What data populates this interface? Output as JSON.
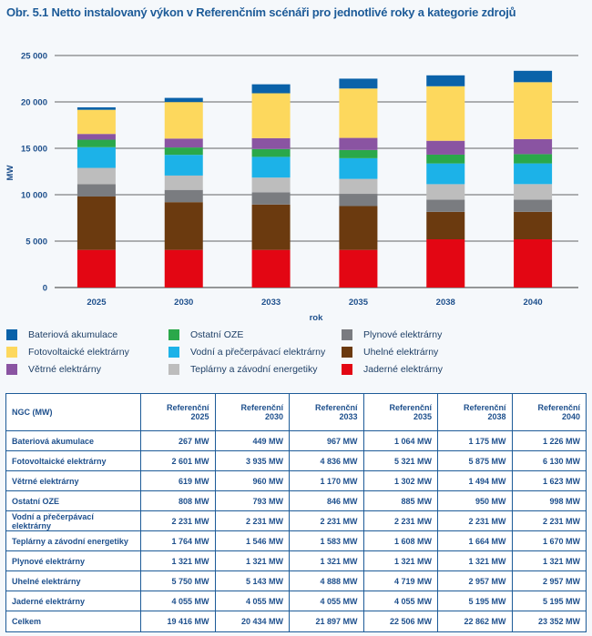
{
  "title": "Obr. 5.1 Netto instalovaný výkon v Referenčním scénáři pro jednotlivé roky a kategorie zdrojů",
  "chart_data": {
    "type": "bar",
    "stacked": true,
    "title": "Obr. 5.1 Netto instalovaný výkon v Referenčním scénáři pro jednotlivé roky a kategorie zdrojů",
    "xlabel": "rok",
    "ylabel": "MW",
    "ylim": [
      0,
      25000
    ],
    "yticks": [
      0,
      5000,
      10000,
      15000,
      20000,
      25000
    ],
    "ytick_labels": [
      "0",
      "5 000",
      "10 000",
      "15 000",
      "20 000",
      "25 000"
    ],
    "grid": true,
    "legend_placement": "bottom",
    "categories": [
      "2025",
      "2030",
      "2033",
      "2035",
      "2038",
      "2040"
    ],
    "series": [
      {
        "name": "Jaderné elektrárny",
        "color": "#e30613",
        "values": [
          4055,
          4055,
          4055,
          4055,
          5195,
          5195
        ]
      },
      {
        "name": "Uhelné elektrárny",
        "color": "#6b3a0f",
        "values": [
          5750,
          5143,
          4888,
          4719,
          2957,
          2957
        ]
      },
      {
        "name": "Plynové elektrárny",
        "color": "#7a7c80",
        "values": [
          1321,
          1321,
          1321,
          1321,
          1321,
          1321
        ]
      },
      {
        "name": "Teplárny a závodní energetiky",
        "color": "#bdbdbd",
        "values": [
          1764,
          1546,
          1583,
          1608,
          1664,
          1670
        ]
      },
      {
        "name": "Vodní a přečerpávací elektrárny",
        "color": "#1cb2e8",
        "values": [
          2231,
          2231,
          2231,
          2231,
          2231,
          2231
        ]
      },
      {
        "name": "Ostatní OZE",
        "color": "#2aa84a",
        "values": [
          808,
          793,
          846,
          885,
          950,
          998
        ]
      },
      {
        "name": "Větrné elektrárny",
        "color": "#8a54a2",
        "values": [
          619,
          960,
          1170,
          1302,
          1494,
          1623
        ]
      },
      {
        "name": "Fotovoltaické elektrárny",
        "color": "#fdd85d",
        "values": [
          2601,
          3935,
          4836,
          5321,
          5875,
          6130
        ]
      },
      {
        "name": "Bateriová akumulace",
        "color": "#0a62a9",
        "values": [
          267,
          449,
          967,
          1064,
          1175,
          1226
        ]
      }
    ]
  },
  "legend_order": [
    "Bateriová akumulace",
    "Fotovoltaické elektrárny",
    "Větrné elektrárny",
    "Ostatní OZE",
    "Vodní a přečerpávací elektrárny",
    "Teplárny a závodní energetiky",
    "Plynové elektrárny",
    "Uhelné elektrárny",
    "Jaderné elektrárny"
  ],
  "table": {
    "header": [
      "NGC (MW)",
      "Referenční 2025",
      "Referenční 2030",
      "Referenční 2033",
      "Referenční 2035",
      "Referenční 2038",
      "Referenční 2040"
    ],
    "rows": [
      [
        "Bateriová akumulace",
        "267 MW",
        "449 MW",
        "967 MW",
        "1 064 MW",
        "1 175 MW",
        "1 226 MW"
      ],
      [
        "Fotovoltaické elektrárny",
        "2 601 MW",
        "3 935 MW",
        "4 836 MW",
        "5 321 MW",
        "5 875 MW",
        "6 130 MW"
      ],
      [
        "Větrné elektrárny",
        "619 MW",
        "960 MW",
        "1 170 MW",
        "1 302 MW",
        "1 494 MW",
        "1 623 MW"
      ],
      [
        "Ostatní OZE",
        "808 MW",
        "793 MW",
        "846 MW",
        "885 MW",
        "950 MW",
        "998 MW"
      ],
      [
        "Vodní a přečerpávací elektrárny",
        "2 231 MW",
        "2 231 MW",
        "2 231 MW",
        "2 231 MW",
        "2 231 MW",
        "2 231 MW"
      ],
      [
        "Teplárny a závodní energetiky",
        "1 764 MW",
        "1 546 MW",
        "1 583 MW",
        "1 608 MW",
        "1 664 MW",
        "1 670 MW"
      ],
      [
        "Plynové elektrárny",
        "1 321 MW",
        "1 321 MW",
        "1 321 MW",
        "1 321 MW",
        "1 321 MW",
        "1 321 MW"
      ],
      [
        "Uhelné elektrárny",
        "5 750 MW",
        "5 143 MW",
        "4 888 MW",
        "4 719 MW",
        "2 957 MW",
        "2 957 MW"
      ],
      [
        "Jaderné elektrárny",
        "4 055 MW",
        "4 055 MW",
        "4 055 MW",
        "4 055 MW",
        "5 195 MW",
        "5 195 MW"
      ],
      [
        "Celkem",
        "19 416 MW",
        "20 434 MW",
        "21 897 MW",
        "22 506 MW",
        "22 862 MW",
        "23 352 MW"
      ]
    ]
  }
}
